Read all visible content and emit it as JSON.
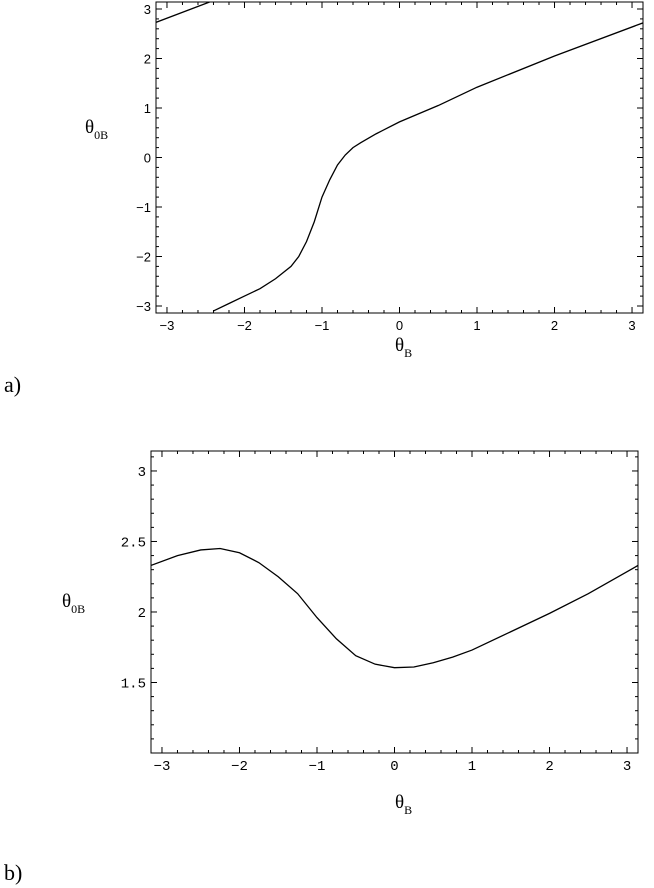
{
  "chart_data": [
    {
      "type": "line",
      "panel_label": "a)",
      "xlabel": {
        "main": "θ",
        "sub": "B"
      },
      "ylabel": {
        "main": "θ",
        "sub": "0B"
      },
      "xlim": [
        -3.14159,
        3.14159
      ],
      "ylim": [
        -3.14159,
        3.14159
      ],
      "xticks": [
        -3,
        -2,
        -1,
        0,
        1,
        2,
        3
      ],
      "xtick_labels": [
        "−3",
        "−2",
        "−1",
        "0",
        "1",
        "2",
        "3"
      ],
      "yticks": [
        -3,
        -2,
        -1,
        0,
        1,
        2,
        3
      ],
      "ytick_labels": [
        "−3",
        "−2",
        "−1",
        "0",
        "1",
        "2",
        "3"
      ],
      "grid": false,
      "series": [
        {
          "x": [
            -3.14159,
            -2.45
          ],
          "y": [
            2.73,
            3.14159
          ]
        },
        {
          "x": [
            -2.4,
            -2.2,
            -2.0,
            -1.8,
            -1.6,
            -1.4,
            -1.3,
            -1.2,
            -1.1,
            -1.0,
            -0.9,
            -0.8,
            -0.7,
            -0.6,
            -0.5,
            -0.3,
            0.0,
            0.5,
            1.0,
            2.0,
            3.14159
          ],
          "y": [
            -3.1,
            -2.95,
            -2.8,
            -2.65,
            -2.45,
            -2.2,
            -2.0,
            -1.7,
            -1.3,
            -0.8,
            -0.45,
            -0.15,
            0.05,
            0.2,
            0.3,
            0.48,
            0.72,
            1.05,
            1.42,
            2.05,
            2.72
          ]
        }
      ]
    },
    {
      "type": "line",
      "panel_label": "b)",
      "xlabel": {
        "main": "θ",
        "sub": "B"
      },
      "ylabel": {
        "main": "θ",
        "sub": "0B"
      },
      "xlim": [
        -3.14159,
        3.14159
      ],
      "ylim": [
        1.0,
        3.14159
      ],
      "xticks": [
        -3,
        -2,
        -1,
        0,
        1,
        2,
        3
      ],
      "xtick_labels": [
        "−3",
        "−2",
        "−1",
        "0",
        "1",
        "2",
        "3"
      ],
      "yticks": [
        1.5,
        2,
        2.5,
        3
      ],
      "ytick_labels": [
        "1.5",
        "2",
        "2.5",
        "3"
      ],
      "grid": false,
      "series": [
        {
          "x": [
            -3.14159,
            -2.8,
            -2.5,
            -2.25,
            -2.0,
            -1.75,
            -1.5,
            -1.25,
            -1.0,
            -0.75,
            -0.5,
            -0.25,
            0.0,
            0.25,
            0.5,
            0.75,
            1.0,
            1.5,
            2.0,
            2.5,
            3.14159
          ],
          "y": [
            2.33,
            2.4,
            2.44,
            2.45,
            2.42,
            2.35,
            2.25,
            2.13,
            1.96,
            1.81,
            1.69,
            1.63,
            1.605,
            1.61,
            1.64,
            1.68,
            1.73,
            1.86,
            1.99,
            2.13,
            2.33
          ]
        }
      ]
    }
  ]
}
